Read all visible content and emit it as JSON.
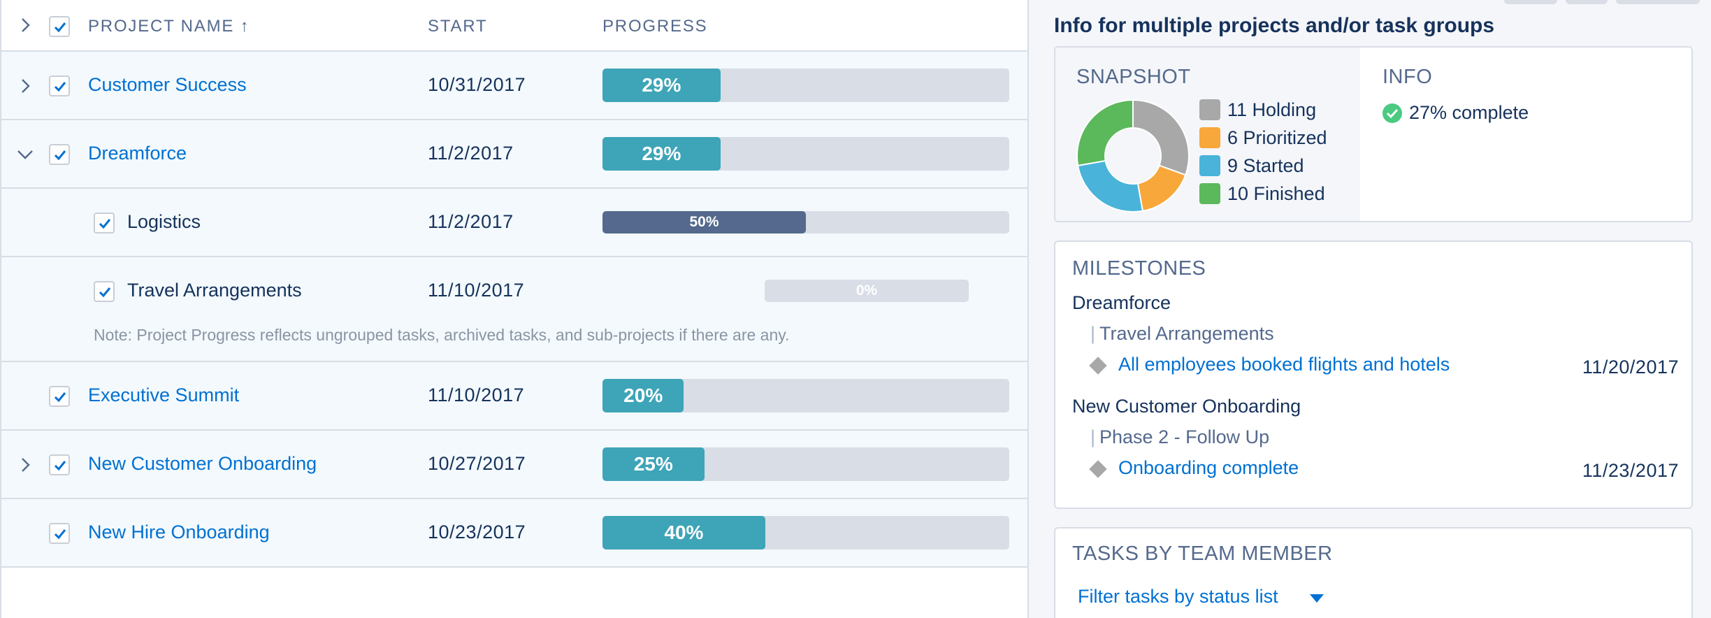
{
  "table": {
    "headers": {
      "project_name": "PROJECT NAME",
      "sort_arrow": "↑",
      "start": "START",
      "progress": "PROGRESS"
    },
    "rows": [
      {
        "name": "Customer Success",
        "start": "10/31/2017",
        "progress_label": "29%",
        "progress": 0.29,
        "chevron": "right"
      },
      {
        "name": "Dreamforce",
        "start": "11/2/2017",
        "progress_label": "29%",
        "progress": 0.29,
        "chevron": "down"
      },
      {
        "name": "Logistics",
        "start": "11/2/2017",
        "progress_label": "50%",
        "progress": 0.5,
        "chevron": "none"
      },
      {
        "name": "Travel Arrangements",
        "start": "11/10/2017",
        "progress_label": "0%",
        "progress": 0.0,
        "chevron": "none"
      },
      {
        "name": "Executive Summit",
        "start": "11/10/2017",
        "progress_label": "20%",
        "progress": 0.2,
        "chevron": "none"
      },
      {
        "name": "New Customer Onboarding",
        "start": "10/27/2017",
        "progress_label": "25%",
        "progress": 0.25,
        "chevron": "right"
      },
      {
        "name": "New Hire Onboarding",
        "start": "10/23/2017",
        "progress_label": "40%",
        "progress": 0.4,
        "chevron": "none"
      }
    ],
    "note": "Note: Project Progress reflects ungrouped tasks, archived tasks, and sub-projects if there are any."
  },
  "panel": {
    "title": "Info for multiple projects and/or task groups",
    "snapshot": {
      "heading": "SNAPSHOT",
      "legend": [
        {
          "label": "11 Holding",
          "value": 11,
          "color": "#a8a8a8"
        },
        {
          "label": "6 Prioritized",
          "value": 6,
          "color": "#f8a73a"
        },
        {
          "label": "9 Started",
          "value": 9,
          "color": "#49b3d9"
        },
        {
          "label": "10 Finished",
          "value": 10,
          "color": "#5bb85b"
        }
      ]
    },
    "info": {
      "heading": "INFO",
      "complete": "27% complete",
      "complete_color": "#4bca81"
    },
    "milestones": {
      "heading": "MILESTONES",
      "groups": [
        {
          "project": "Dreamforce",
          "task_group": "Travel Arrangements",
          "milestone": "All employees booked flights and hotels",
          "date": "11/20/2017"
        },
        {
          "project": "New Customer Onboarding",
          "task_group": "Phase 2 - Follow Up",
          "milestone": "Onboarding complete",
          "date": "11/23/2017"
        }
      ]
    },
    "tasks_by_member": {
      "heading": "TASKS BY TEAM MEMBER",
      "filter_label": "Filter tasks by status list"
    }
  },
  "colors": {
    "link": "#0070d2",
    "progress_bar": "#3ea4b8",
    "progress_bar_sub": "#54698d",
    "track": "#d8dde6"
  }
}
